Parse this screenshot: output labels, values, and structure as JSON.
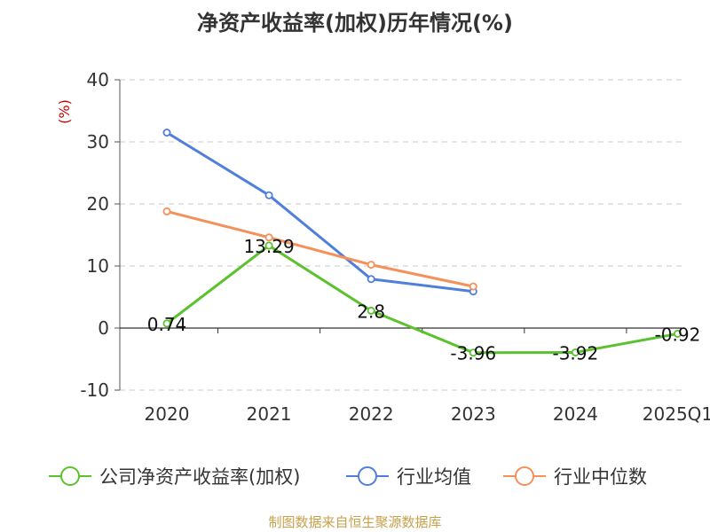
{
  "chart_data": {
    "type": "line",
    "title": "净资产收益率(加权)历年情况(%)",
    "ylabel": "(%)",
    "xlabel": "",
    "categories": [
      "2020",
      "2021",
      "2022",
      "2023",
      "2024",
      "2025Q1"
    ],
    "ylim": [
      -10,
      40
    ],
    "yticks": [
      -10,
      0,
      10,
      20,
      30,
      40
    ],
    "grid": true,
    "legend_position": "bottom",
    "series": [
      {
        "name": "公司净资产收益率(加权)",
        "color": "#5bc22e",
        "values": [
          0.74,
          13.29,
          2.8,
          -3.96,
          -3.92,
          -0.92
        ],
        "labels": [
          "0.74",
          "13.29",
          "2.8",
          "-3.96",
          "-3.92",
          "-0.92"
        ]
      },
      {
        "name": "行业均值",
        "color": "#4f7fdb",
        "values": [
          31.5,
          21.4,
          7.9,
          5.9,
          null,
          null
        ]
      },
      {
        "name": "行业中位数",
        "color": "#f5905a",
        "values": [
          18.8,
          14.6,
          10.2,
          6.7,
          null,
          null
        ]
      }
    ]
  },
  "source_note": "制图数据来自恒生聚源数据库"
}
